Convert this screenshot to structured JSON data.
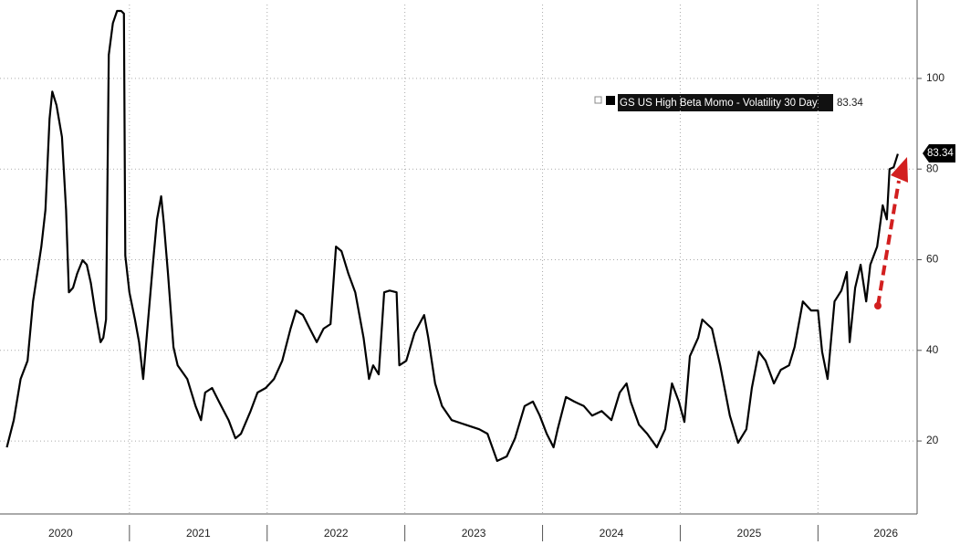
{
  "chart_data": {
    "type": "line",
    "series": [
      {
        "name": "GS US High Beta Momo - Volatility 30 Day",
        "color": "#000000",
        "values": [
          18.6,
          24.6,
          33.7,
          37.7,
          50.8,
          62.9,
          71.0,
          91.1,
          97.1,
          94.1,
          87.1,
          71.0,
          52.8,
          53.8,
          56.9,
          59.9,
          58.9,
          54.8,
          48.8,
          41.8,
          42.8,
          46.8,
          105.2,
          112.2,
          114.9,
          114.9,
          114.3,
          60.9,
          52.8,
          46.8,
          41.8,
          33.7,
          44.8,
          58.9,
          68.9,
          74.0,
          67.9,
          56.9,
          40.7,
          36.7,
          33.7,
          27.7,
          24.6,
          30.7,
          31.7,
          28.7,
          24.6,
          20.6,
          21.6,
          26.6,
          30.7,
          31.7,
          33.7,
          37.7,
          44.8,
          48.8,
          47.8,
          44.8,
          41.8,
          44.8,
          45.8,
          62.9,
          61.9,
          56.9,
          52.8,
          42.8,
          33.7,
          36.7,
          34.7,
          52.8,
          53.2,
          52.8,
          36.7,
          37.7,
          43.8,
          47.8,
          42.8,
          32.7,
          27.7,
          24.6,
          23.6,
          22.6,
          21.6,
          15.6,
          16.6,
          20.6,
          27.7,
          28.7,
          25.6,
          21.6,
          18.6,
          22.6,
          29.7,
          28.7,
          27.7,
          25.6,
          26.6,
          24.6,
          30.7,
          32.7,
          28.7,
          23.6,
          21.6,
          18.6,
          22.6,
          32.7,
          28.7,
          24.2,
          38.7,
          42.8,
          46.8,
          44.8,
          36.7,
          25.6,
          19.6,
          22.6,
          31.7,
          39.7,
          37.7,
          32.7,
          35.7,
          36.7,
          40.7,
          50.8,
          48.8,
          48.8,
          39.7,
          33.7,
          50.8,
          53.2,
          57.3,
          41.8,
          53.8,
          58.9,
          50.8,
          58.9,
          62.9,
          72.0,
          68.9,
          80.0,
          80.4,
          83.34
        ]
      }
    ],
    "x": [
      2020.11,
      2020.16,
      2020.21,
      2020.26,
      2020.3,
      2020.36,
      2020.39,
      2020.42,
      2020.44,
      2020.47,
      2020.51,
      2020.54,
      2020.56,
      2020.59,
      2020.62,
      2020.66,
      2020.69,
      2020.72,
      2020.75,
      2020.79,
      2020.81,
      2020.83,
      2020.85,
      2020.88,
      2020.91,
      2020.94,
      2020.96,
      2020.97,
      2021.0,
      2021.04,
      2021.07,
      2021.1,
      2021.13,
      2021.17,
      2021.2,
      2021.23,
      2021.25,
      2021.28,
      2021.32,
      2021.35,
      2021.42,
      2021.48,
      2021.52,
      2021.55,
      2021.6,
      2021.65,
      2021.72,
      2021.77,
      2021.81,
      2021.88,
      2021.93,
      2021.99,
      2022.05,
      2022.11,
      2022.17,
      2022.21,
      2022.26,
      2022.31,
      2022.36,
      2022.41,
      2022.46,
      2022.5,
      2022.54,
      2022.59,
      2022.64,
      2022.7,
      2022.74,
      2022.77,
      2022.81,
      2022.85,
      2022.89,
      2022.94,
      2022.96,
      2023.01,
      2023.07,
      2023.14,
      2023.17,
      2023.22,
      2023.27,
      2023.34,
      2023.44,
      2023.54,
      2023.6,
      2023.67,
      2023.74,
      2023.8,
      2023.87,
      2023.93,
      2023.98,
      2024.03,
      2024.08,
      2024.11,
      2024.17,
      2024.23,
      2024.3,
      2024.36,
      2024.43,
      2024.5,
      2024.56,
      2024.61,
      2024.64,
      2024.7,
      2024.76,
      2024.83,
      2024.89,
      2024.94,
      2024.99,
      2025.03,
      2025.07,
      2025.13,
      2025.16,
      2025.23,
      2025.29,
      2025.36,
      2025.42,
      2025.48,
      2025.52,
      2025.57,
      2025.62,
      2025.68,
      2025.73,
      2025.79,
      2025.83,
      2025.89,
      2025.95,
      2026.0,
      2026.03,
      2026.07,
      2026.12,
      2026.17,
      2026.21,
      2026.23,
      2026.27,
      2026.31,
      2026.35,
      2026.38,
      2026.43,
      2026.47,
      2026.5,
      2026.52,
      2026.55,
      2026.58
    ],
    "xlim": [
      2020.06,
      2026.72
    ],
    "xticks": [
      {
        "value": 2020,
        "label": "2020"
      },
      {
        "value": 2021,
        "label": "2021"
      },
      {
        "value": 2022,
        "label": "2022"
      },
      {
        "value": 2023,
        "label": "2023"
      },
      {
        "value": 2024,
        "label": "2024"
      },
      {
        "value": 2025,
        "label": "2025"
      },
      {
        "value": 2026,
        "label": "2026"
      }
    ],
    "ylim": [
      3.9,
      116.3
    ],
    "yticks": [
      20,
      40,
      60,
      80,
      100
    ],
    "grid": true
  }
}
